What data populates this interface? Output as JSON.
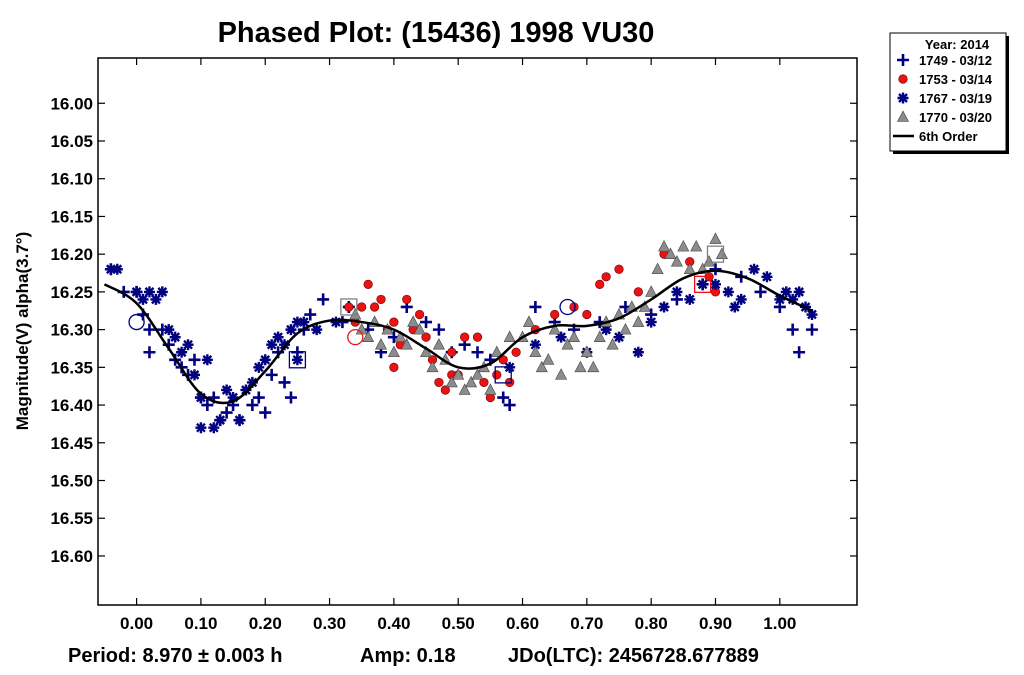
{
  "chart_data": {
    "type": "scatter",
    "title": "Phased Plot: (15436) 1998 VU30",
    "xlabel": "",
    "ylabel": "Magnitude(V) alpha(3.7°)",
    "xlim": [
      -0.06,
      1.12
    ],
    "ylim": [
      16.665,
      15.94
    ],
    "y_inverted": true,
    "x_ticks": [
      "0.00",
      "0.10",
      "0.20",
      "0.30",
      "0.40",
      "0.50",
      "0.60",
      "0.70",
      "0.80",
      "0.90",
      "1.00"
    ],
    "y_ticks": [
      "16.00",
      "16.05",
      "16.10",
      "16.15",
      "16.20",
      "16.25",
      "16.30",
      "16.35",
      "16.40",
      "16.45",
      "16.50",
      "16.55",
      "16.60"
    ],
    "footer": {
      "period": "Period: 8.970 ± 0.003 h",
      "amp": "Amp: 0.18",
      "jdo": "JDo(LTC): 2456728.677889"
    },
    "legend": {
      "position": "top-right, outside plot",
      "title": "Year: 2014",
      "entries": [
        "1749 - 03/12",
        "1753 - 03/14",
        "1767 - 03/19",
        "1770 - 03/20",
        "6th Order"
      ]
    },
    "colors": {
      "s1749": "#000080",
      "s1753": "#ee1111",
      "s1767": "#000080",
      "s1770": "#8c8c8c",
      "fit": "#000000"
    },
    "fit": {
      "name": "6th Order",
      "x": [
        -0.05,
        0.0,
        0.05,
        0.1,
        0.15,
        0.2,
        0.25,
        0.3,
        0.35,
        0.4,
        0.45,
        0.5,
        0.55,
        0.6,
        0.65,
        0.7,
        0.75,
        0.8,
        0.85,
        0.9,
        0.95,
        1.0,
        1.05
      ],
      "y": [
        16.24,
        16.265,
        16.325,
        16.385,
        16.395,
        16.355,
        16.305,
        16.288,
        16.29,
        16.3,
        16.325,
        16.35,
        16.345,
        16.31,
        16.295,
        16.295,
        16.285,
        16.26,
        16.232,
        16.222,
        16.232,
        16.255,
        16.275
      ]
    },
    "series": [
      {
        "name": "1749 - 03/12",
        "marker": "plus",
        "points": [
          [
            -0.04,
            16.22
          ],
          [
            -0.02,
            16.25
          ],
          [
            0.0,
            16.25
          ],
          [
            0.01,
            16.28
          ],
          [
            0.02,
            16.3
          ],
          [
            0.02,
            16.33
          ],
          [
            0.04,
            16.3
          ],
          [
            0.05,
            16.32
          ],
          [
            0.06,
            16.34
          ],
          [
            0.07,
            16.35
          ],
          [
            0.08,
            16.36
          ],
          [
            0.09,
            16.34
          ],
          [
            0.1,
            16.39
          ],
          [
            0.11,
            16.4
          ],
          [
            0.12,
            16.39
          ],
          [
            0.13,
            16.42
          ],
          [
            0.14,
            16.41
          ],
          [
            0.15,
            16.4
          ],
          [
            0.16,
            16.42
          ],
          [
            0.18,
            16.4
          ],
          [
            0.19,
            16.39
          ],
          [
            0.2,
            16.41
          ],
          [
            0.21,
            16.36
          ],
          [
            0.22,
            16.33
          ],
          [
            0.23,
            16.37
          ],
          [
            0.24,
            16.39
          ],
          [
            0.25,
            16.33
          ],
          [
            0.26,
            16.3
          ],
          [
            0.27,
            16.28
          ],
          [
            0.29,
            16.26
          ],
          [
            0.32,
            16.29
          ],
          [
            0.33,
            16.27
          ],
          [
            0.36,
            16.3
          ],
          [
            0.38,
            16.33
          ],
          [
            0.4,
            16.31
          ],
          [
            0.42,
            16.27
          ],
          [
            0.45,
            16.29
          ],
          [
            0.47,
            16.3
          ],
          [
            0.49,
            16.33
          ],
          [
            0.51,
            16.32
          ],
          [
            0.53,
            16.33
          ],
          [
            0.55,
            16.34
          ],
          [
            0.57,
            16.39
          ],
          [
            0.58,
            16.4
          ],
          [
            0.62,
            16.27
          ],
          [
            0.65,
            16.29
          ],
          [
            0.68,
            16.3
          ],
          [
            0.72,
            16.29
          ],
          [
            0.76,
            16.27
          ],
          [
            0.8,
            16.28
          ],
          [
            0.84,
            16.26
          ],
          [
            0.88,
            16.24
          ],
          [
            0.9,
            16.22
          ],
          [
            0.94,
            16.23
          ],
          [
            0.97,
            16.25
          ],
          [
            1.0,
            16.27
          ],
          [
            1.02,
            16.3
          ],
          [
            1.03,
            16.33
          ],
          [
            1.05,
            16.3
          ]
        ]
      },
      {
        "name": "1753 - 03/14",
        "marker": "circle",
        "points": [
          [
            0.33,
            16.27
          ],
          [
            0.34,
            16.29
          ],
          [
            0.35,
            16.27
          ],
          [
            0.36,
            16.24
          ],
          [
            0.37,
            16.27
          ],
          [
            0.38,
            16.26
          ],
          [
            0.39,
            16.3
          ],
          [
            0.4,
            16.29
          ],
          [
            0.4,
            16.35
          ],
          [
            0.41,
            16.32
          ],
          [
            0.42,
            16.26
          ],
          [
            0.43,
            16.3
          ],
          [
            0.44,
            16.28
          ],
          [
            0.45,
            16.31
          ],
          [
            0.46,
            16.34
          ],
          [
            0.47,
            16.37
          ],
          [
            0.48,
            16.38
          ],
          [
            0.49,
            16.36
          ],
          [
            0.49,
            16.33
          ],
          [
            0.5,
            16.36
          ],
          [
            0.51,
            16.31
          ],
          [
            0.53,
            16.31
          ],
          [
            0.54,
            16.37
          ],
          [
            0.55,
            16.39
          ],
          [
            0.56,
            16.36
          ],
          [
            0.57,
            16.34
          ],
          [
            0.58,
            16.37
          ],
          [
            0.59,
            16.33
          ],
          [
            0.62,
            16.3
          ],
          [
            0.65,
            16.28
          ],
          [
            0.68,
            16.27
          ],
          [
            0.7,
            16.28
          ],
          [
            0.72,
            16.24
          ],
          [
            0.73,
            16.23
          ],
          [
            0.75,
            16.22
          ],
          [
            0.78,
            16.25
          ],
          [
            0.82,
            16.2
          ],
          [
            0.86,
            16.21
          ],
          [
            0.89,
            16.23
          ],
          [
            0.9,
            16.25
          ]
        ]
      },
      {
        "name": "1767 - 03/19",
        "marker": "asterisk",
        "points": [
          [
            -0.04,
            16.22
          ],
          [
            -0.03,
            16.22
          ],
          [
            0.0,
            16.25
          ],
          [
            0.01,
            16.26
          ],
          [
            0.02,
            16.25
          ],
          [
            0.03,
            16.26
          ],
          [
            0.04,
            16.25
          ],
          [
            0.05,
            16.3
          ],
          [
            0.06,
            16.31
          ],
          [
            0.07,
            16.33
          ],
          [
            0.08,
            16.32
          ],
          [
            0.09,
            16.36
          ],
          [
            0.1,
            16.39
          ],
          [
            0.1,
            16.43
          ],
          [
            0.11,
            16.34
          ],
          [
            0.12,
            16.43
          ],
          [
            0.13,
            16.42
          ],
          [
            0.14,
            16.38
          ],
          [
            0.15,
            16.39
          ],
          [
            0.16,
            16.42
          ],
          [
            0.17,
            16.38
          ],
          [
            0.18,
            16.37
          ],
          [
            0.19,
            16.35
          ],
          [
            0.2,
            16.34
          ],
          [
            0.21,
            16.32
          ],
          [
            0.22,
            16.31
          ],
          [
            0.23,
            16.32
          ],
          [
            0.24,
            16.3
          ],
          [
            0.25,
            16.34
          ],
          [
            0.25,
            16.29
          ],
          [
            0.26,
            16.29
          ],
          [
            0.28,
            16.3
          ],
          [
            0.31,
            16.29
          ],
          [
            0.58,
            16.35
          ],
          [
            0.62,
            16.32
          ],
          [
            0.66,
            16.31
          ],
          [
            0.7,
            16.33
          ],
          [
            0.73,
            16.3
          ],
          [
            0.75,
            16.31
          ],
          [
            0.78,
            16.33
          ],
          [
            0.8,
            16.29
          ],
          [
            0.82,
            16.27
          ],
          [
            0.84,
            16.25
          ],
          [
            0.86,
            16.26
          ],
          [
            0.88,
            16.24
          ],
          [
            0.9,
            16.24
          ],
          [
            0.92,
            16.25
          ],
          [
            0.93,
            16.27
          ],
          [
            0.94,
            16.26
          ],
          [
            0.96,
            16.22
          ],
          [
            0.98,
            16.23
          ],
          [
            1.0,
            16.26
          ],
          [
            1.01,
            16.25
          ],
          [
            1.02,
            16.26
          ],
          [
            1.03,
            16.25
          ],
          [
            1.04,
            16.27
          ],
          [
            1.05,
            16.28
          ]
        ]
      },
      {
        "name": "1770 - 03/20",
        "marker": "triangle",
        "points": [
          [
            0.34,
            16.28
          ],
          [
            0.35,
            16.3
          ],
          [
            0.36,
            16.31
          ],
          [
            0.37,
            16.29
          ],
          [
            0.38,
            16.32
          ],
          [
            0.39,
            16.3
          ],
          [
            0.4,
            16.33
          ],
          [
            0.41,
            16.31
          ],
          [
            0.42,
            16.32
          ],
          [
            0.43,
            16.29
          ],
          [
            0.44,
            16.3
          ],
          [
            0.45,
            16.33
          ],
          [
            0.46,
            16.35
          ],
          [
            0.47,
            16.32
          ],
          [
            0.48,
            16.34
          ],
          [
            0.49,
            16.37
          ],
          [
            0.5,
            16.36
          ],
          [
            0.51,
            16.38
          ],
          [
            0.52,
            16.37
          ],
          [
            0.53,
            16.36
          ],
          [
            0.54,
            16.35
          ],
          [
            0.55,
            16.38
          ],
          [
            0.56,
            16.33
          ],
          [
            0.58,
            16.31
          ],
          [
            0.6,
            16.31
          ],
          [
            0.61,
            16.29
          ],
          [
            0.62,
            16.33
          ],
          [
            0.63,
            16.35
          ],
          [
            0.64,
            16.34
          ],
          [
            0.65,
            16.3
          ],
          [
            0.66,
            16.36
          ],
          [
            0.67,
            16.32
          ],
          [
            0.68,
            16.31
          ],
          [
            0.69,
            16.35
          ],
          [
            0.7,
            16.33
          ],
          [
            0.71,
            16.35
          ],
          [
            0.72,
            16.31
          ],
          [
            0.73,
            16.29
          ],
          [
            0.74,
            16.32
          ],
          [
            0.75,
            16.28
          ],
          [
            0.76,
            16.3
          ],
          [
            0.77,
            16.27
          ],
          [
            0.78,
            16.29
          ],
          [
            0.79,
            16.27
          ],
          [
            0.8,
            16.25
          ],
          [
            0.81,
            16.22
          ],
          [
            0.82,
            16.19
          ],
          [
            0.83,
            16.2
          ],
          [
            0.84,
            16.21
          ],
          [
            0.85,
            16.19
          ],
          [
            0.86,
            16.22
          ],
          [
            0.87,
            16.19
          ],
          [
            0.88,
            16.22
          ],
          [
            0.89,
            16.21
          ],
          [
            0.9,
            16.18
          ],
          [
            0.91,
            16.2
          ]
        ]
      }
    ],
    "open_markers": [
      {
        "marker": "circle",
        "color": "#000080",
        "x": 0.0,
        "y": 16.29
      },
      {
        "marker": "circle",
        "color": "#ee1111",
        "x": 0.34,
        "y": 16.31
      },
      {
        "marker": "circle",
        "color": "#000080",
        "x": 0.67,
        "y": 16.27
      },
      {
        "marker": "square",
        "color": "#000080",
        "x": 0.25,
        "y": 16.34
      },
      {
        "marker": "square",
        "color": "#000080",
        "x": 0.57,
        "y": 16.36
      },
      {
        "marker": "square",
        "color": "#808080",
        "x": 0.33,
        "y": 16.27
      },
      {
        "marker": "square",
        "color": "#808080",
        "x": 0.9,
        "y": 16.2
      },
      {
        "marker": "square",
        "color": "#ee1111",
        "x": 0.88,
        "y": 16.24
      }
    ]
  }
}
